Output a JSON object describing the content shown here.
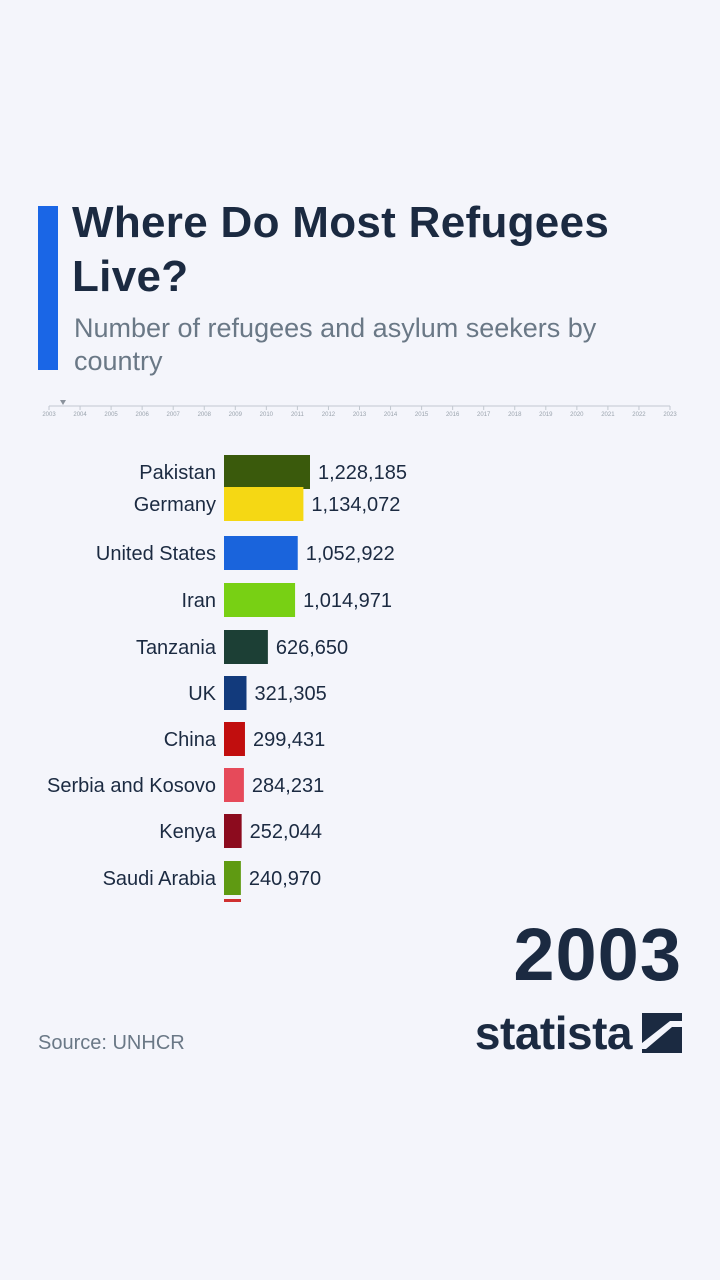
{
  "title": "Where Do Most Refugees Live?",
  "subtitle": "Number of refugees and asylum seekers by country",
  "source": "Source: UNHCR",
  "logo_text": "statista",
  "accent_color": "#1a66e6",
  "timeline": {
    "years": [
      "2003",
      "2004",
      "2005",
      "2006",
      "2007",
      "2008",
      "2009",
      "2010",
      "2011",
      "2012",
      "2013",
      "2014",
      "2015",
      "2016",
      "2017",
      "2018",
      "2019",
      "2020",
      "2021",
      "2022",
      "2023"
    ],
    "current": "2003"
  },
  "chart_data": {
    "type": "bar",
    "orientation": "horizontal",
    "year": "2003",
    "categories": [
      "Pakistan",
      "Germany",
      "United States",
      "Iran",
      "Tanzania",
      "UK",
      "China",
      "Serbia and Kosovo",
      "Kenya",
      "Saudi Arabia"
    ],
    "values": [
      1228185,
      1134072,
      1052922,
      1014971,
      626650,
      321305,
      299431,
      284231,
      252044,
      240970
    ],
    "labels": [
      "1,228,185",
      "1,134,072",
      "1,052,922",
      "1,014,971",
      "626,650",
      "321,305",
      "299,431",
      "284,231",
      "252,044",
      "240,970"
    ],
    "colors": [
      "#3a5a0c",
      "#f5d814",
      "#1a64dc",
      "#78d014",
      "#1c3f35",
      "#123a7c",
      "#c10e0e",
      "#e64a5a",
      "#8c0b1e",
      "#5f9a12"
    ]
  }
}
